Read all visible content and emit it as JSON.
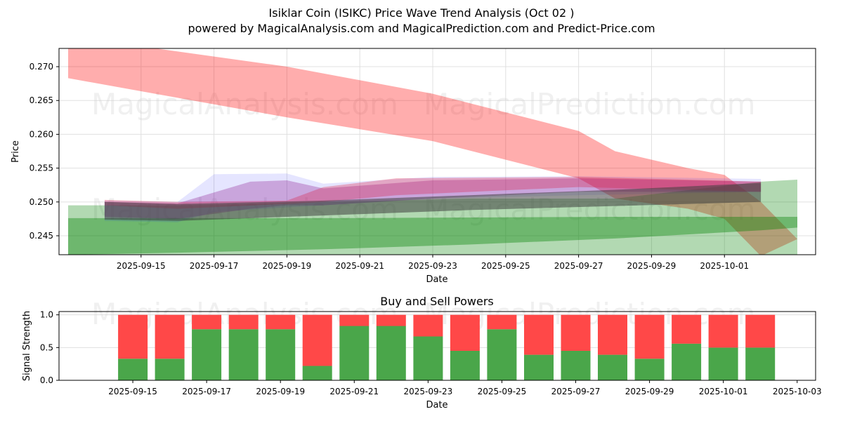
{
  "title": "Isiklar Coin (ISIKC) Price Wave Trend Analysis (Oct 02 )",
  "subtitle": "powered by MagicalAnalysis.com and MagicalPrediction.com and Predict-Price.com",
  "watermarks": [
    "MagicalAnalysis.com",
    "MagicalPrediction.com"
  ],
  "colors": {
    "red_band": "#ff0000",
    "green_band": "#008000",
    "blue_band": "#0000ff",
    "purple_band": "#800080",
    "buy": "#4aa64a",
    "sell": "#ff4848"
  },
  "chart_data": [
    {
      "type": "area",
      "title": "",
      "xlabel": "Date",
      "ylabel": "Price",
      "ylim": [
        0.2422,
        0.2727
      ],
      "xlim": [
        "2025-09-12T18:00",
        "2025-10-03T12:00"
      ],
      "grid": true,
      "yticks": [
        "0.245",
        "0.250",
        "0.255",
        "0.260",
        "0.265",
        "0.270"
      ],
      "xticks": [
        "2025-09-15",
        "2025-09-17",
        "2025-09-19",
        "2025-09-21",
        "2025-09-23",
        "2025-09-25",
        "2025-09-27",
        "2025-09-29",
        "2025-10-01"
      ],
      "series": [
        {
          "name": "red-upper-band",
          "color": "#ff0000",
          "alpha": 0.32,
          "x": [
            "2025-09-13",
            "2025-09-19",
            "2025-09-23",
            "2025-09-27",
            "2025-09-28",
            "2025-09-30",
            "2025-10-01",
            "2025-10-02",
            "2025-10-03"
          ],
          "upper": [
            0.2745,
            0.27,
            0.266,
            0.2605,
            0.2575,
            0.255,
            0.254,
            0.25,
            0.2445
          ],
          "lower": [
            0.2683,
            0.2625,
            0.259,
            0.2535,
            0.2505,
            0.249,
            0.2475,
            0.242,
            0.2445
          ]
        },
        {
          "name": "green-wide-band",
          "color": "#008000",
          "alpha": 0.3,
          "x": [
            "2025-09-13",
            "2025-09-16",
            "2025-09-20",
            "2025-09-24",
            "2025-09-28",
            "2025-10-02",
            "2025-10-03"
          ],
          "upper": [
            0.2495,
            0.2495,
            0.25,
            0.2505,
            0.2505,
            0.253,
            0.2533
          ],
          "lower": [
            0.2422,
            0.2422,
            0.2422,
            0.2422,
            0.2422,
            0.2422,
            0.2422
          ]
        },
        {
          "name": "green-dark-band",
          "color": "#008000",
          "alpha": 0.38,
          "x": [
            "2025-09-13",
            "2025-09-16",
            "2025-09-20",
            "2025-09-24",
            "2025-09-28",
            "2025-10-02",
            "2025-10-03"
          ],
          "upper": [
            0.2476,
            0.2476,
            0.2476,
            0.2477,
            0.2478,
            0.2478,
            0.2478
          ],
          "lower": [
            0.2422,
            0.2425,
            0.243,
            0.2437,
            0.2446,
            0.2458,
            0.2462
          ]
        },
        {
          "name": "blue-band",
          "color": "#0000ff",
          "alpha": 0.1,
          "x": [
            "2025-09-14",
            "2025-09-16",
            "2025-09-17",
            "2025-09-19",
            "2025-09-20",
            "2025-09-23",
            "2025-09-27",
            "2025-10-02"
          ],
          "upper": [
            0.2502,
            0.25,
            0.2541,
            0.2542,
            0.2527,
            0.2537,
            0.2538,
            0.2534
          ],
          "lower": [
            0.2472,
            0.247,
            0.2485,
            0.2492,
            0.2495,
            0.2505,
            0.251,
            0.2515
          ]
        },
        {
          "name": "purple-band",
          "color": "#800080",
          "alpha": 0.28,
          "x": [
            "2025-09-14",
            "2025-09-16",
            "2025-09-18",
            "2025-09-19",
            "2025-09-20",
            "2025-09-23",
            "2025-09-27",
            "2025-10-02"
          ],
          "upper": [
            0.25,
            0.2498,
            0.253,
            0.2532,
            0.252,
            0.2532,
            0.2535,
            0.253
          ],
          "lower": [
            0.2478,
            0.2475,
            0.249,
            0.2495,
            0.2495,
            0.2505,
            0.2515,
            0.2515
          ]
        },
        {
          "name": "crimson-band",
          "color": "#dc143c",
          "alpha": 0.3,
          "x": [
            "2025-09-14",
            "2025-09-16",
            "2025-09-19",
            "2025-09-20",
            "2025-09-22",
            "2025-09-27",
            "2025-10-02"
          ],
          "upper": [
            0.2503,
            0.25,
            0.2502,
            0.2522,
            0.2535,
            0.2537,
            0.253
          ],
          "lower": [
            0.2495,
            0.249,
            0.2497,
            0.25,
            0.251,
            0.2522,
            0.2515
          ]
        },
        {
          "name": "dark-gray-band",
          "color": "#404040",
          "alpha": 0.55,
          "x": [
            "2025-09-14",
            "2025-09-16",
            "2025-09-20",
            "2025-09-24",
            "2025-09-28",
            "2025-10-02"
          ],
          "upper": [
            0.25,
            0.2497,
            0.2502,
            0.251,
            0.2518,
            0.2528
          ],
          "lower": [
            0.2474,
            0.2472,
            0.248,
            0.2488,
            0.2494,
            0.25
          ]
        }
      ]
    },
    {
      "type": "bar",
      "title": "Buy and Sell Powers",
      "xlabel": "Date",
      "ylabel": "Signal Strength",
      "ylim": [
        0,
        1.05
      ],
      "yticks": [
        "0.0",
        "0.5",
        "1.0"
      ],
      "xticks": [
        "2025-09-15",
        "2025-09-17",
        "2025-09-19",
        "2025-09-21",
        "2025-09-23",
        "2025-09-25",
        "2025-09-27",
        "2025-09-29",
        "2025-10-01",
        "2025-10-03"
      ],
      "grid": true,
      "categories": [
        "2025-09-15",
        "2025-09-16",
        "2025-09-17",
        "2025-09-18",
        "2025-09-19",
        "2025-09-20",
        "2025-09-21",
        "2025-09-22",
        "2025-09-23",
        "2025-09-24",
        "2025-09-25",
        "2025-09-26",
        "2025-09-27",
        "2025-09-28",
        "2025-09-29",
        "2025-09-30",
        "2025-10-01",
        "2025-10-02"
      ],
      "series": [
        {
          "name": "Buy",
          "color": "#4aa64a",
          "values": [
            0.33,
            0.33,
            0.78,
            0.78,
            0.78,
            0.22,
            0.83,
            0.83,
            0.67,
            0.45,
            0.78,
            0.39,
            0.45,
            0.39,
            0.33,
            0.56,
            0.5,
            0.5
          ]
        },
        {
          "name": "Sell",
          "color": "#ff4848",
          "values": [
            0.67,
            0.67,
            0.22,
            0.22,
            0.22,
            0.78,
            0.17,
            0.17,
            0.33,
            0.55,
            0.22,
            0.61,
            0.55,
            0.61,
            0.67,
            0.44,
            0.5,
            0.5
          ]
        }
      ]
    }
  ]
}
